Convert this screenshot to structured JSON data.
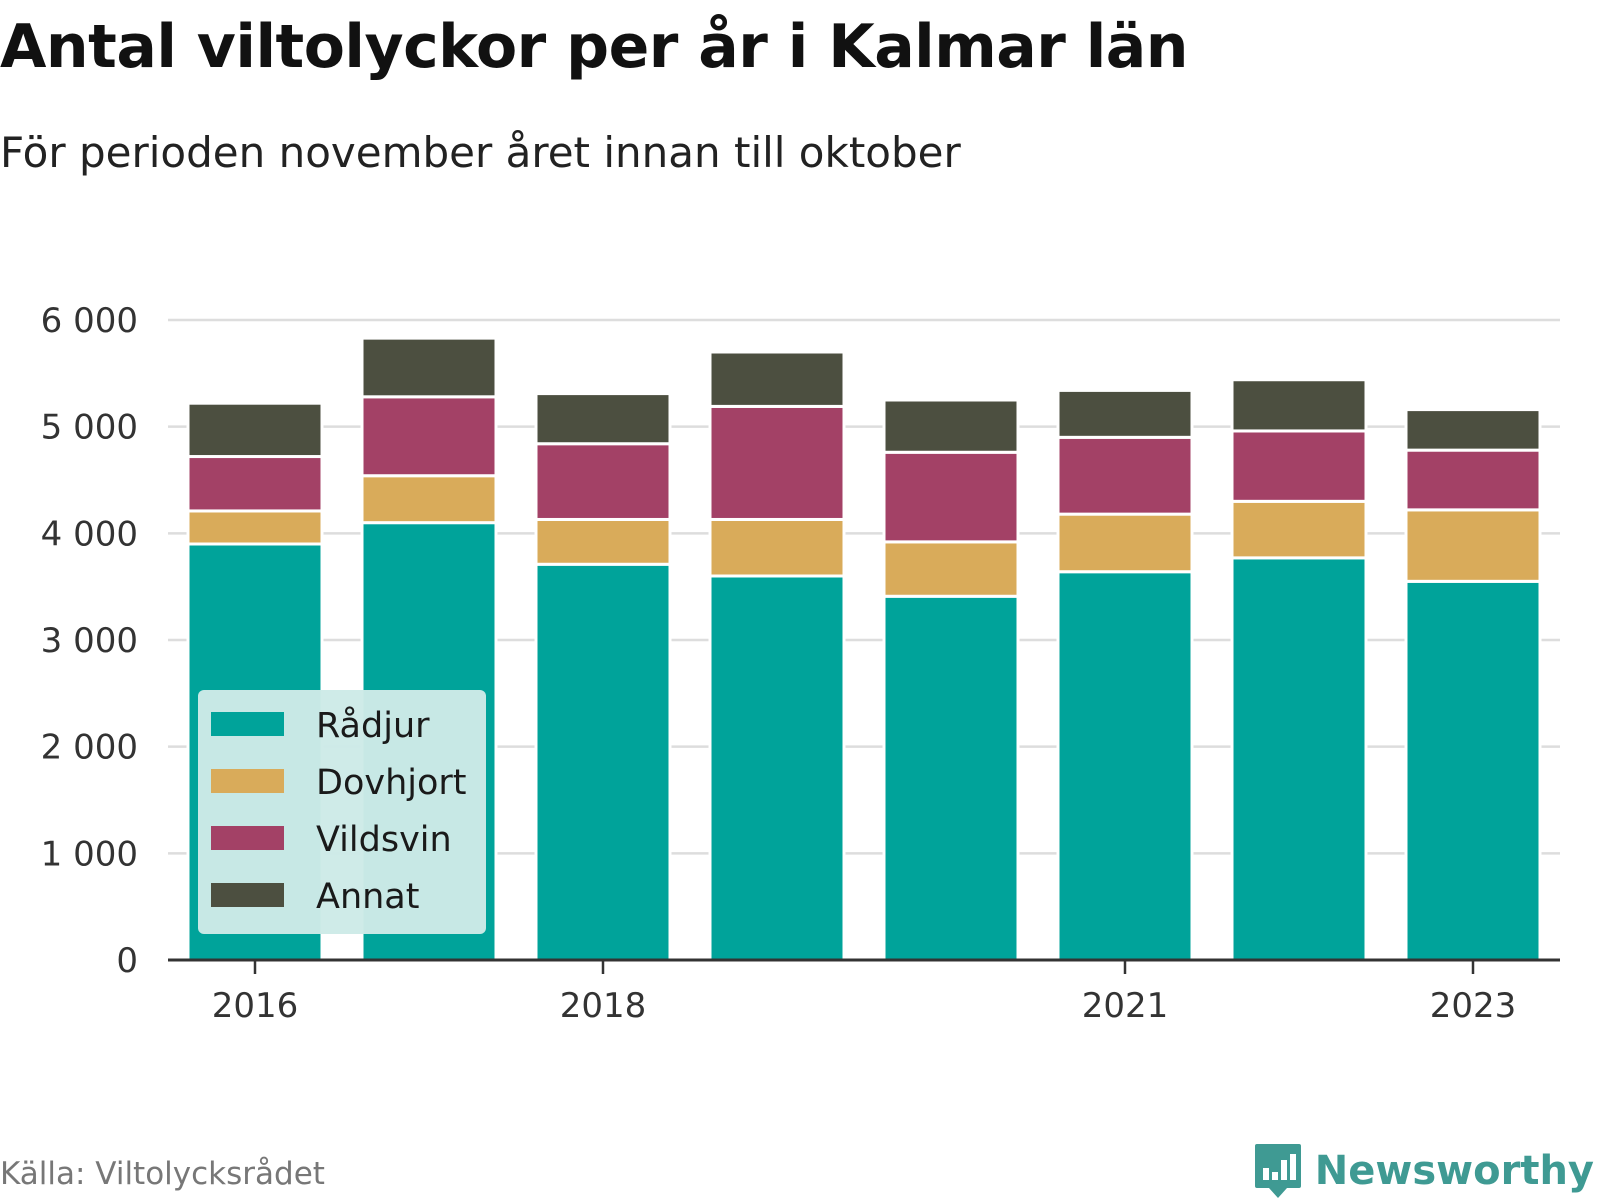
{
  "header": {
    "title": "Antal viltolyckor per år i Kalmar län",
    "subtitle": "För perioden november året innan till oktober"
  },
  "footer": {
    "source": "Källa: Viltolycksrådet",
    "brand": "Newsworthy"
  },
  "colors": {
    "Rådjur": "#00a39a",
    "Dovhjort": "#d9ab5a",
    "Vildsvin": "#a34166",
    "Annat": "#4c4f40",
    "grid": "#dddddd",
    "axis": "#333333",
    "brand": "#3f9a93",
    "legend_bg": "#cdeae7"
  },
  "chart_data": {
    "type": "bar",
    "stacked": true,
    "categories": [
      "2016",
      "2017",
      "2018",
      "2019",
      "2020",
      "2021",
      "2022",
      "2023"
    ],
    "x_tick_labels": [
      "2016",
      "2018",
      "2021",
      "2023"
    ],
    "y_tick_labels": [
      "0",
      "1 000",
      "2 000",
      "3 000",
      "4 000",
      "5 000",
      "6 000"
    ],
    "ylim": [
      0,
      6000
    ],
    "grid": true,
    "legend_position": "bottom-left",
    "series": [
      {
        "name": "Rådjur",
        "values": [
          3900,
          4100,
          3710,
          3600,
          3410,
          3640,
          3770,
          3550
        ]
      },
      {
        "name": "Dovhjort",
        "values": [
          310,
          440,
          420,
          530,
          510,
          540,
          530,
          670
        ]
      },
      {
        "name": "Vildsvin",
        "values": [
          510,
          740,
          710,
          1060,
          840,
          720,
          660,
          560
        ]
      },
      {
        "name": "Annat",
        "values": [
          500,
          550,
          470,
          510,
          490,
          440,
          480,
          380
        ]
      }
    ]
  }
}
